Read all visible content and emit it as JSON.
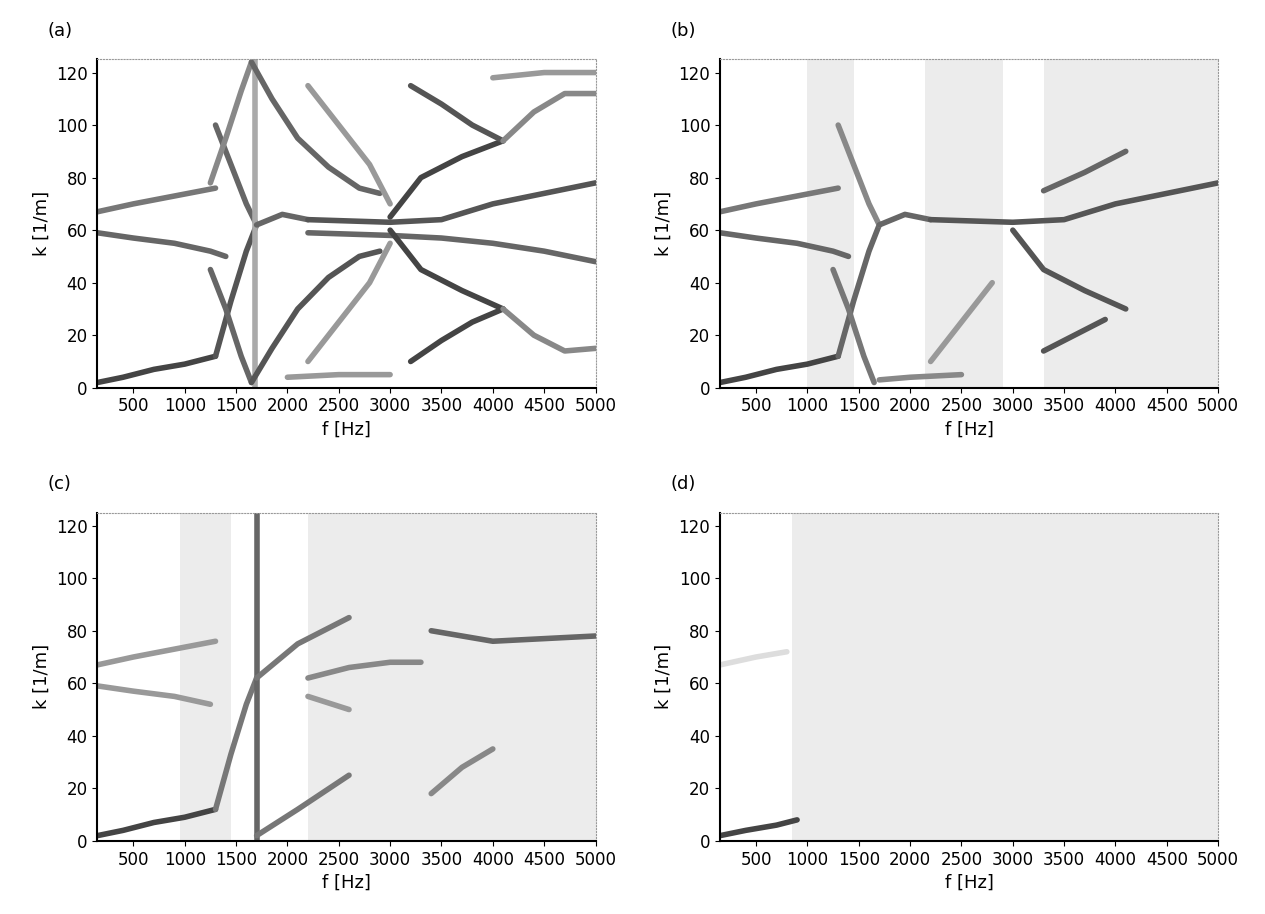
{
  "chart_data": [
    {
      "type": "line",
      "title": "(a)",
      "x_label": "f [Hz]",
      "y_label": "k [1/m]",
      "xlim": [
        150,
        5000
      ],
      "ylim": [
        0,
        125
      ],
      "xticks": [
        500,
        1000,
        1500,
        2000,
        2500,
        3000,
        3500,
        4000,
        4500,
        5000
      ],
      "yticks": [
        0,
        20,
        40,
        60,
        80,
        100,
        120
      ],
      "noise_bands": [],
      "series": [
        {
          "x": [
            150,
            400,
            700,
            1000,
            1300
          ],
          "values": [
            2,
            4,
            7,
            9,
            12
          ],
          "color": "#444444"
        },
        {
          "x": [
            150,
            500,
            900,
            1300
          ],
          "values": [
            67,
            70,
            73,
            76
          ],
          "color": "#777777"
        },
        {
          "x": [
            150,
            500,
            900,
            1250,
            1400
          ],
          "values": [
            59,
            57,
            55,
            52,
            50
          ],
          "color": "#666666"
        },
        {
          "x": [
            1300,
            1450,
            1600,
            1700
          ],
          "values": [
            12,
            33,
            52,
            62
          ],
          "color": "#555555"
        },
        {
          "x": [
            1250,
            1400,
            1550,
            1650
          ],
          "values": [
            45,
            30,
            12,
            2
          ],
          "color": "#666666"
        },
        {
          "x": [
            1300,
            1450,
            1600,
            1700
          ],
          "values": [
            100,
            85,
            70,
            62
          ],
          "color": "#666666"
        },
        {
          "x": [
            1250,
            1400,
            1550,
            1650
          ],
          "values": [
            78,
            95,
            113,
            124
          ],
          "color": "#888888"
        },
        {
          "x": [
            1680,
            1680
          ],
          "values": [
            0,
            125
          ],
          "color": "#aaaaaa"
        },
        {
          "x": [
            1650,
            1850,
            2100,
            2400,
            2700,
            2900
          ],
          "values": [
            2,
            15,
            30,
            42,
            50,
            52
          ],
          "color": "#555555"
        },
        {
          "x": [
            1650,
            1850,
            2100,
            2400,
            2700,
            2900
          ],
          "values": [
            124,
            110,
            95,
            84,
            76,
            74
          ],
          "color": "#666666"
        },
        {
          "x": [
            1700,
            1950,
            2200
          ],
          "values": [
            62,
            66,
            64
          ],
          "color": "#666666"
        },
        {
          "x": [
            2000,
            2500,
            3000
          ],
          "values": [
            4,
            5,
            5
          ],
          "color": "#999999"
        },
        {
          "x": [
            2200,
            2500,
            2800,
            3000
          ],
          "values": [
            10,
            25,
            40,
            55
          ],
          "color": "#999999"
        },
        {
          "x": [
            2200,
            2500,
            2800,
            3000
          ],
          "values": [
            115,
            100,
            85,
            70
          ],
          "color": "#999999"
        },
        {
          "x": [
            2200,
            3000,
            3500,
            4000,
            4500,
            5000
          ],
          "values": [
            64,
            63,
            64,
            70,
            74,
            78
          ],
          "color": "#555555"
        },
        {
          "x": [
            2200,
            3000,
            3500,
            4000,
            4500,
            5000
          ],
          "values": [
            59,
            58,
            57,
            55,
            52,
            48
          ],
          "color": "#666666"
        },
        {
          "x": [
            3000,
            3300,
            3700,
            4100
          ],
          "values": [
            60,
            45,
            37,
            30
          ],
          "color": "#444444"
        },
        {
          "x": [
            3200,
            3500,
            3800,
            4100
          ],
          "values": [
            10,
            18,
            25,
            30
          ],
          "color": "#444444"
        },
        {
          "x": [
            3000,
            3300,
            3700,
            4100
          ],
          "values": [
            65,
            80,
            88,
            94
          ],
          "color": "#444444"
        },
        {
          "x": [
            3200,
            3500,
            3800,
            4100
          ],
          "values": [
            115,
            108,
            100,
            94
          ],
          "color": "#555555"
        },
        {
          "x": [
            4100,
            4400,
            4700,
            5000
          ],
          "values": [
            30,
            20,
            14,
            15
          ],
          "color": "#888888"
        },
        {
          "x": [
            4100,
            4400,
            4700,
            5000
          ],
          "values": [
            94,
            105,
            112,
            112
          ],
          "color": "#888888"
        },
        {
          "x": [
            4000,
            4500,
            5000
          ],
          "values": [
            118,
            120,
            120
          ],
          "color": "#999999"
        }
      ]
    },
    {
      "type": "line",
      "title": "(b)",
      "x_label": "f [Hz]",
      "y_label": "k [1/m]",
      "xlim": [
        150,
        5000
      ],
      "ylim": [
        0,
        125
      ],
      "xticks": [
        500,
        1000,
        1500,
        2000,
        2500,
        3000,
        3500,
        4000,
        4500,
        5000
      ],
      "yticks": [
        0,
        20,
        40,
        60,
        80,
        100,
        120
      ],
      "noise_bands": [
        [
          1000,
          1450
        ],
        [
          2150,
          2900
        ],
        [
          3300,
          5000
        ]
      ],
      "series": [
        {
          "x": [
            150,
            400,
            700,
            1000,
            1300
          ],
          "values": [
            2,
            4,
            7,
            9,
            12
          ],
          "color": "#444444"
        },
        {
          "x": [
            150,
            500,
            900,
            1300
          ],
          "values": [
            67,
            70,
            73,
            76
          ],
          "color": "#777777"
        },
        {
          "x": [
            150,
            500,
            900,
            1250,
            1400
          ],
          "values": [
            59,
            57,
            55,
            52,
            50
          ],
          "color": "#666666"
        },
        {
          "x": [
            1300,
            1450,
            1600,
            1700
          ],
          "values": [
            12,
            33,
            52,
            62
          ],
          "color": "#666666"
        },
        {
          "x": [
            1250,
            1400,
            1550,
            1650
          ],
          "values": [
            45,
            30,
            12,
            2
          ],
          "color": "#777777"
        },
        {
          "x": [
            1300,
            1450,
            1600,
            1700
          ],
          "values": [
            100,
            85,
            70,
            62
          ],
          "color": "#888888"
        },
        {
          "x": [
            1700,
            1950,
            2200
          ],
          "values": [
            62,
            66,
            64
          ],
          "color": "#666666"
        },
        {
          "x": [
            1700,
            2000,
            2500
          ],
          "values": [
            3,
            4,
            5
          ],
          "color": "#888888"
        },
        {
          "x": [
            2200,
            2500,
            2800
          ],
          "values": [
            10,
            25,
            40
          ],
          "color": "#999999"
        },
        {
          "x": [
            2200,
            3000,
            3500,
            4000,
            4500,
            5000
          ],
          "values": [
            64,
            63,
            64,
            70,
            74,
            78
          ],
          "color": "#555555"
        },
        {
          "x": [
            3000,
            3300,
            3700,
            4100
          ],
          "values": [
            60,
            45,
            37,
            30
          ],
          "color": "#555555"
        },
        {
          "x": [
            3300,
            3600,
            3900
          ],
          "values": [
            14,
            20,
            26
          ],
          "color": "#555555"
        },
        {
          "x": [
            3300,
            3700,
            4100
          ],
          "values": [
            75,
            82,
            90
          ],
          "color": "#666666"
        }
      ]
    },
    {
      "type": "line",
      "title": "(c)",
      "x_label": "f [Hz]",
      "y_label": "k [1/m]",
      "xlim": [
        150,
        5000
      ],
      "ylim": [
        0,
        125
      ],
      "xticks": [
        500,
        1000,
        1500,
        2000,
        2500,
        3000,
        3500,
        4000,
        4500,
        5000
      ],
      "yticks": [
        0,
        20,
        40,
        60,
        80,
        100,
        120
      ],
      "noise_bands": [
        [
          950,
          1450
        ],
        [
          2200,
          5000
        ]
      ],
      "series": [
        {
          "x": [
            150,
            400,
            700,
            1000,
            1300
          ],
          "values": [
            2,
            4,
            7,
            9,
            12
          ],
          "color": "#444444"
        },
        {
          "x": [
            150,
            500,
            900,
            1300
          ],
          "values": [
            67,
            70,
            73,
            76
          ],
          "color": "#999999"
        },
        {
          "x": [
            150,
            500,
            900,
            1250
          ],
          "values": [
            59,
            57,
            55,
            52
          ],
          "color": "#999999"
        },
        {
          "x": [
            1300,
            1450,
            1600,
            1700
          ],
          "values": [
            12,
            33,
            52,
            62
          ],
          "color": "#777777"
        },
        {
          "x": [
            1700,
            1700
          ],
          "values": [
            0,
            125
          ],
          "color": "#666666"
        },
        {
          "x": [
            1700,
            2100,
            2600
          ],
          "values": [
            62,
            75,
            85
          ],
          "color": "#777777"
        },
        {
          "x": [
            1700,
            2100,
            2600
          ],
          "values": [
            2,
            12,
            25
          ],
          "color": "#777777"
        },
        {
          "x": [
            2200,
            2600,
            3000,
            3300
          ],
          "values": [
            62,
            66,
            68,
            68
          ],
          "color": "#888888"
        },
        {
          "x": [
            2200,
            2600
          ],
          "values": [
            55,
            50
          ],
          "color": "#999999"
        },
        {
          "x": [
            3400,
            4000,
            4500,
            5000
          ],
          "values": [
            80,
            76,
            77,
            78
          ],
          "color": "#666666"
        },
        {
          "x": [
            3400,
            3700,
            4000
          ],
          "values": [
            18,
            28,
            35
          ],
          "color": "#888888"
        }
      ]
    },
    {
      "type": "line",
      "title": "(d)",
      "x_label": "f [Hz]",
      "y_label": "k [1/m]",
      "xlim": [
        150,
        5000
      ],
      "ylim": [
        0,
        125
      ],
      "xticks": [
        500,
        1000,
        1500,
        2000,
        2500,
        3000,
        3500,
        4000,
        4500,
        5000
      ],
      "yticks": [
        0,
        20,
        40,
        60,
        80,
        100,
        120
      ],
      "noise_bands": [
        [
          850,
          5000
        ]
      ],
      "series": [
        {
          "x": [
            150,
            400,
            700,
            900
          ],
          "values": [
            2,
            4,
            6,
            8
          ],
          "color": "#444444"
        },
        {
          "x": [
            150,
            500,
            800
          ],
          "values": [
            67,
            70,
            72
          ],
          "color": "#dddddd"
        }
      ]
    }
  ]
}
